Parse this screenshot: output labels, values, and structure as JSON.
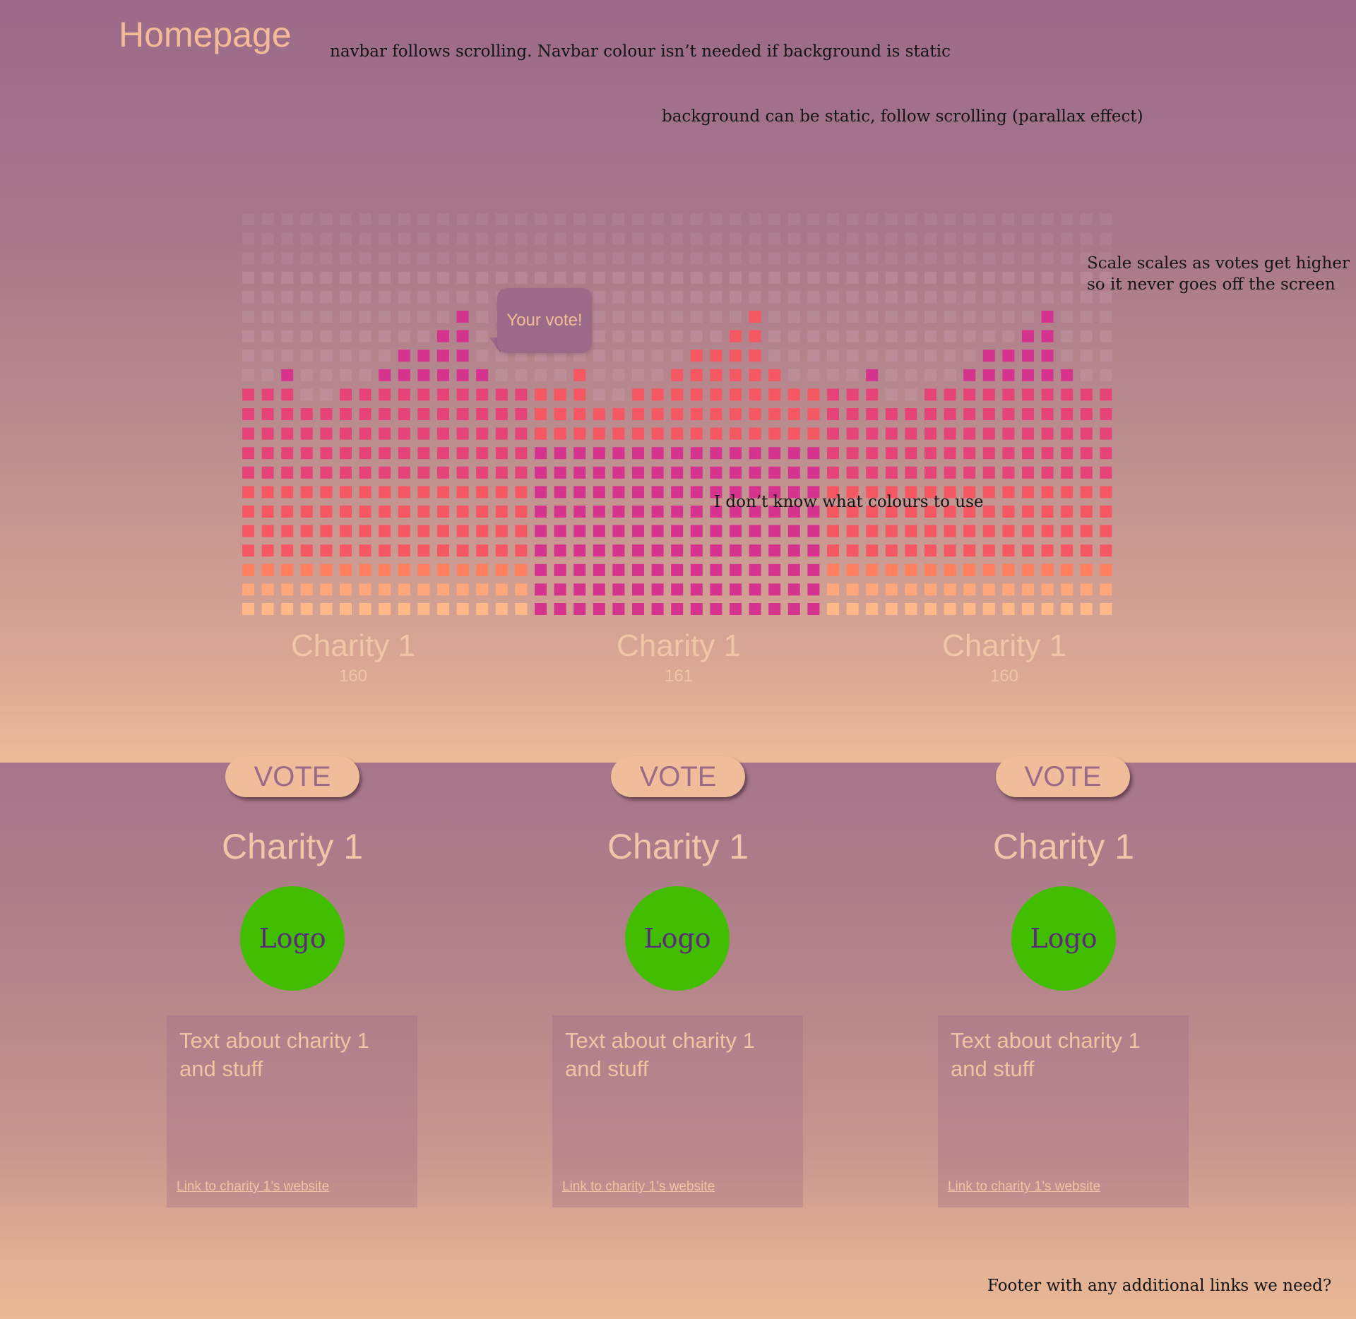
{
  "page": {
    "title": "Homepage"
  },
  "notes": {
    "navbar": "navbar follows scrolling. Navbar colour isn’t needed if background is static",
    "background": "background can be static, follow scrolling (parallax effect)",
    "scale_line1": "Scale scales as votes get higher",
    "scale_line2": "so it never goes off the screen",
    "colours": "I don’t know what colours to use",
    "footer": "Footer with any additional links we need?"
  },
  "bubble": {
    "text": "Your vote!"
  },
  "colors": {
    "magenta": "#d6338f",
    "pink": "#e64478",
    "coral": "#f55863",
    "orange": "#ff7f5f",
    "peach": "#ffa67a",
    "light_peach": "#ffb888",
    "empty_cell": "#c9a0b0",
    "logo_green": "#42be00",
    "button": "#efbd9a"
  },
  "chart_data": {
    "type": "bar",
    "categories": [
      "Charity 1",
      "Charity 1",
      "Charity 1"
    ],
    "values": [
      160,
      161,
      160
    ],
    "grid_levels": 21,
    "column_heights": [
      [
        12,
        12,
        13,
        11,
        11,
        12,
        12,
        13,
        14,
        14,
        15,
        16,
        13,
        12,
        12
      ],
      [
        12,
        12,
        13,
        11,
        11,
        12,
        12,
        13,
        14,
        14,
        15,
        16,
        13,
        12,
        12
      ],
      [
        12,
        12,
        13,
        11,
        11,
        12,
        12,
        13,
        14,
        14,
        15,
        16,
        13,
        12,
        12
      ]
    ]
  },
  "bars": [
    {
      "name": "Charity 1",
      "votes": "160"
    },
    {
      "name": "Charity 1",
      "votes": "161"
    },
    {
      "name": "Charity 1",
      "votes": "160"
    }
  ],
  "cards": [
    {
      "vote_label": "VOTE",
      "name": "Charity 1",
      "logo": "Logo",
      "text": "Text about charity 1 and stuff",
      "link": "Link to charity 1’s website"
    },
    {
      "vote_label": "VOTE",
      "name": "Charity 1",
      "logo": "Logo",
      "text": "Text about charity 1 and stuff",
      "link": "Link to charity 1’s website"
    },
    {
      "vote_label": "VOTE",
      "name": "Charity 1",
      "logo": "Logo",
      "text": "Text about charity 1 and stuff",
      "link": "Link to charity 1’s website"
    }
  ]
}
